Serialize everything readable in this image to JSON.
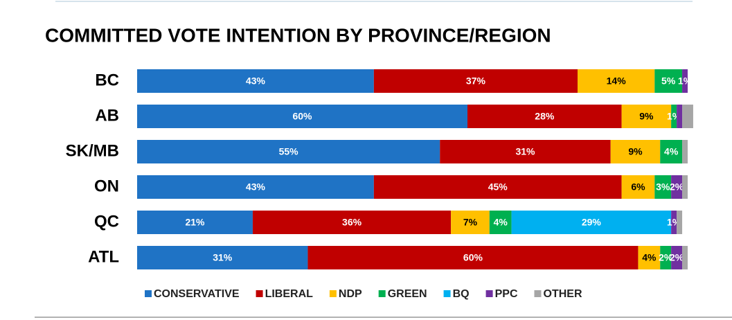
{
  "chart_data": {
    "type": "stacked-bar-horizontal",
    "title": "COMMITTED VOTE INTENTION BY PROVINCE/REGION",
    "categories": [
      "BC",
      "AB",
      "SK/MB",
      "ON",
      "QC",
      "ATL"
    ],
    "xlim": [
      0,
      100
    ],
    "legend": "bottom",
    "series": [
      {
        "name": "CONSERVATIVE",
        "color": "#1f73c5",
        "values": [
          43,
          60,
          55,
          43,
          21,
          31
        ],
        "value_labels": [
          "43%",
          "60%",
          "55%",
          "43%",
          "21%",
          "31%"
        ]
      },
      {
        "name": "LIBERAL",
        "color": "#c00000",
        "values": [
          37,
          28,
          31,
          45,
          36,
          60
        ],
        "value_labels": [
          "37%",
          "28%",
          "31%",
          "45%",
          "36%",
          "60%"
        ]
      },
      {
        "name": "NDP",
        "color": "#ffc000",
        "values": [
          14,
          9,
          9,
          6,
          7,
          4
        ],
        "value_labels": [
          "14%",
          "9%",
          "9%",
          "6%",
          "7%",
          "4%"
        ]
      },
      {
        "name": "GREEN",
        "color": "#00b050",
        "values": [
          5,
          1,
          4,
          3,
          4,
          2
        ],
        "value_labels": [
          "5%",
          "1%",
          "4%",
          "3%",
          "4%",
          "2%"
        ]
      },
      {
        "name": "BQ",
        "color": "#00b0f0",
        "values": [
          0,
          0,
          0,
          0,
          29,
          0
        ],
        "value_labels": [
          null,
          null,
          null,
          null,
          "29%",
          null
        ]
      },
      {
        "name": "PPC",
        "color": "#7030a0",
        "values": [
          1,
          1,
          0,
          2,
          1,
          2
        ],
        "value_labels": [
          "1%",
          null,
          null,
          "2%",
          "1%",
          "2%"
        ]
      },
      {
        "name": "OTHER",
        "color": "#a6a6a6",
        "values": [
          0,
          2,
          1,
          1,
          1,
          1
        ],
        "value_labels": [
          null,
          null,
          null,
          null,
          null,
          null
        ]
      }
    ]
  }
}
